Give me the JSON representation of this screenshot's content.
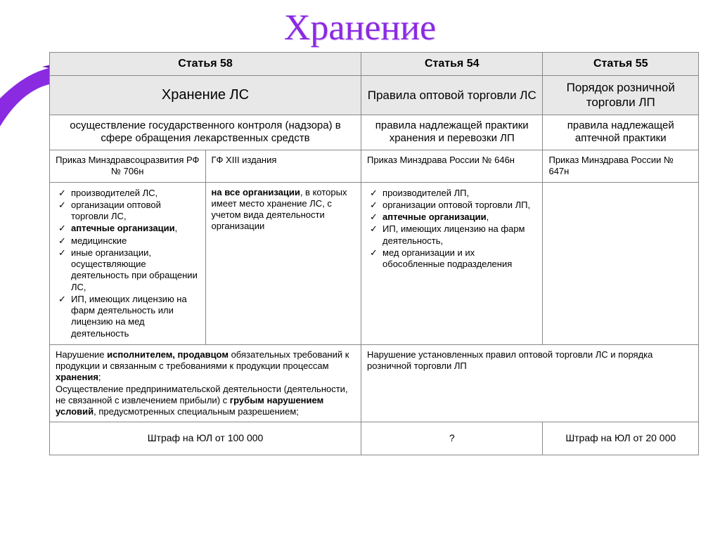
{
  "title": "Хранение",
  "colors": {
    "accent": "#8a2be2",
    "header_bg": "#e8e8e8",
    "border": "#888888",
    "text": "#000000"
  },
  "header_row": {
    "c1": "Статья 58",
    "c2": "Статья 54",
    "c3": "Статья 55"
  },
  "topic_row": {
    "c1": "Хранение ЛС",
    "c2": "Правила оптовой торговли ЛС",
    "c3": "Порядок розничной торговли ЛП"
  },
  "control_row": {
    "c1": "осуществление государственного контроля (надзора) в сфере обращения лекарственных средств",
    "c2": "правила надлежащей практики хранения и перевозки ЛП",
    "c3": "правила надлежащей аптечной практики"
  },
  "order_row": {
    "a": "Приказ Минздравсоцразвития РФ № 706н",
    "b": "ГФ XIII издания",
    "c": "Приказ Минздрава России № 646н",
    "d": "Приказ Минздрава России № 647н"
  },
  "list_row": {
    "a_items": [
      {
        "text": "производителей ЛС,",
        "bold": false
      },
      {
        "text": "организации оптовой торговли ЛС,",
        "bold": false
      },
      {
        "text": "аптечные организации",
        "bold": true,
        "suffix": ","
      },
      {
        "text": "медицинские",
        "bold": false
      },
      {
        "text": "иные организации, осуществляющие деятельность при обращении ЛС,",
        "bold": false
      },
      {
        "text": "ИП, имеющих лицензию на фарм деятельность или лицензию на мед деятельность",
        "bold": false
      }
    ],
    "b_bold": "на все организации",
    "b_rest": ", в которых имеет место хранение ЛС, с учетом вида деятельности организации",
    "c_items": [
      {
        "text": "производителей ЛП,",
        "bold": false
      },
      {
        "text": "организации оптовой торговли ЛП,",
        "bold": false
      },
      {
        "text": "аптечные организации",
        "bold": true,
        "suffix": ","
      },
      {
        "text": "ИП, имеющих лицензию на фарм деятельность,",
        "bold": false
      },
      {
        "text": "мед организации и их обособленные подразделения",
        "bold": false
      }
    ]
  },
  "violation_row": {
    "a_parts": [
      {
        "pre": "Нарушение ",
        "bold": "исполнителем, продавцом",
        "post": " обязательных требований  к продукции и связанным с требованиями к продукции процессам  ",
        "bold2": "хранения",
        "post2": ";"
      },
      {
        "pre": "Осуществление предпринимательской деятельности (деятельности, не связанной с извлечением прибыли) с ",
        "bold": "грубым нарушением условий",
        "post": ", предусмотренных специальным разрешением;"
      }
    ],
    "b": "Нарушение установленных правил оптовой торговли ЛС и порядка розничной торговли ЛП"
  },
  "fine_row": {
    "a": "Штраф на ЮЛ от 100 000",
    "b": "?",
    "c": "Штраф на ЮЛ от 20 000"
  }
}
